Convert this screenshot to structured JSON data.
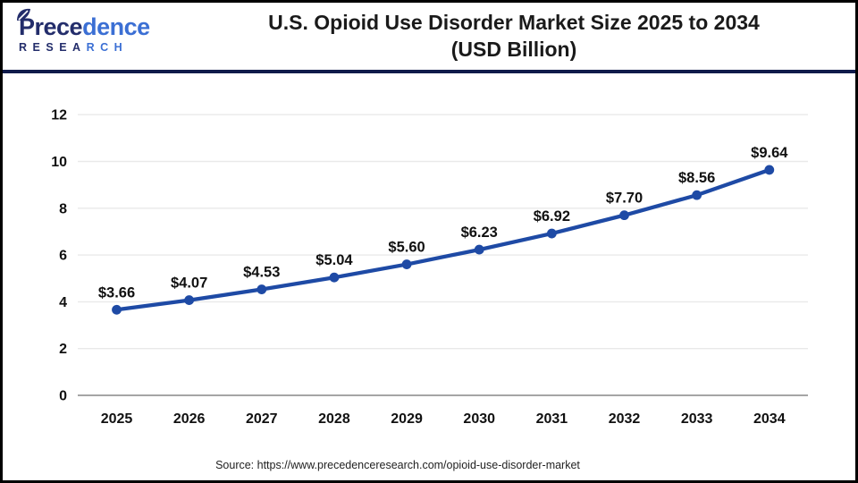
{
  "logo": {
    "brand_primary": "Prece",
    "brand_secondary": "dence",
    "subtitle_primary": "RESEA",
    "subtitle_secondary": "RCH",
    "primary_color": "#232d6b",
    "secondary_color": "#3b6fd4"
  },
  "header": {
    "title_line1": "U.S. Opioid Use Disorder Market Size 2025 to 2034",
    "title_line2": "(USD Billion)",
    "divider_color": "#101b4b"
  },
  "footer": {
    "source": "Source: https://www.precedenceresearch.com/opioid-use-disorder-market"
  },
  "chart_data": {
    "type": "line",
    "title": "U.S. Opioid Use Disorder Market Size 2025 to 2034 (USD Billion)",
    "categories": [
      "2025",
      "2026",
      "2027",
      "2028",
      "2029",
      "2030",
      "2031",
      "2032",
      "2033",
      "2034"
    ],
    "values": [
      3.66,
      4.07,
      4.53,
      5.04,
      5.6,
      6.23,
      6.92,
      7.7,
      8.56,
      9.64
    ],
    "labels": [
      "$3.66",
      "$4.07",
      "$4.53",
      "$5.04",
      "$5.60",
      "$6.23",
      "$6.92",
      "$7.70",
      "$8.56",
      "$9.64"
    ],
    "xlabel": "",
    "ylabel": "",
    "ylim": [
      0,
      12
    ],
    "yticks": [
      0,
      2,
      4,
      6,
      8,
      10,
      12
    ],
    "grid": true,
    "legend_position": "none",
    "line_color": "#1e4aa5",
    "marker_color": "#1e4aa5"
  }
}
